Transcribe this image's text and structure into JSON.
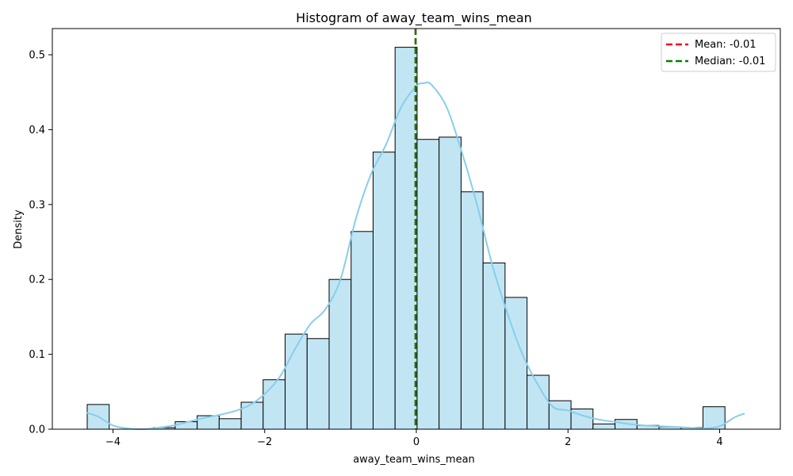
{
  "chart_data": {
    "type": "bar",
    "title": "Histogram of away_team_wins_mean",
    "xlabel": "away_team_wins_mean",
    "ylabel": "Density",
    "xlim": [
      -4.8,
      4.8
    ],
    "ylim": [
      0,
      0.535
    ],
    "xticks": [
      -4,
      -2,
      0,
      2,
      4
    ],
    "xtick_labels": [
      "−4",
      "−2",
      "0",
      "2",
      "4"
    ],
    "yticks": [
      0.0,
      0.1,
      0.2,
      0.3,
      0.4,
      0.5
    ],
    "ytick_labels": [
      "0.0",
      "0.1",
      "0.2",
      "0.3",
      "0.4",
      "0.5"
    ],
    "bins": {
      "x_start": -4.34,
      "bin_width": 0.29,
      "values": [
        0.033,
        0,
        0,
        0.002,
        0.01,
        0.018,
        0.014,
        0.036,
        0.066,
        0.127,
        0.121,
        0.2,
        0.264,
        0.37,
        0.51,
        0.387,
        0.39,
        0.317,
        0.222,
        0.176,
        0.072,
        0.038,
        0.027,
        0.007,
        0.013,
        0.005,
        0.003,
        0.002,
        0.03
      ]
    },
    "kde": {
      "x": [
        -4.35,
        -4.2,
        -4.0,
        -3.8,
        -3.6,
        -3.4,
        -3.2,
        -3.0,
        -2.8,
        -2.6,
        -2.4,
        -2.2,
        -2.0,
        -1.8,
        -1.6,
        -1.4,
        -1.2,
        -1.0,
        -0.8,
        -0.6,
        -0.4,
        -0.2,
        0.0,
        0.1,
        0.2,
        0.4,
        0.6,
        0.8,
        1.0,
        1.2,
        1.4,
        1.6,
        1.8,
        2.0,
        2.2,
        2.4,
        2.6,
        2.8,
        3.0,
        3.2,
        3.4,
        3.6,
        3.8,
        4.0,
        4.2,
        4.33
      ],
      "y": [
        0.022,
        0.017,
        0.005,
        0.001,
        0.0,
        0.002,
        0.005,
        0.01,
        0.015,
        0.019,
        0.024,
        0.032,
        0.047,
        0.07,
        0.107,
        0.14,
        0.16,
        0.2,
        0.28,
        0.34,
        0.38,
        0.43,
        0.458,
        0.462,
        0.46,
        0.43,
        0.37,
        0.3,
        0.22,
        0.155,
        0.1,
        0.06,
        0.03,
        0.025,
        0.018,
        0.013,
        0.01,
        0.007,
        0.005,
        0.004,
        0.003,
        0.002,
        0.001,
        0.004,
        0.016,
        0.021
      ]
    },
    "mean_line": {
      "value": -0.01,
      "label": "Mean: -0.01",
      "color": "#ff0000"
    },
    "median_line": {
      "value": -0.01,
      "label": "Median: -0.01",
      "color": "#008000"
    },
    "bar_fill": "#c2e5f4",
    "bar_edge": "#000000",
    "kde_color": "#87ceeb",
    "legend_position": "top-right",
    "grid": false
  }
}
